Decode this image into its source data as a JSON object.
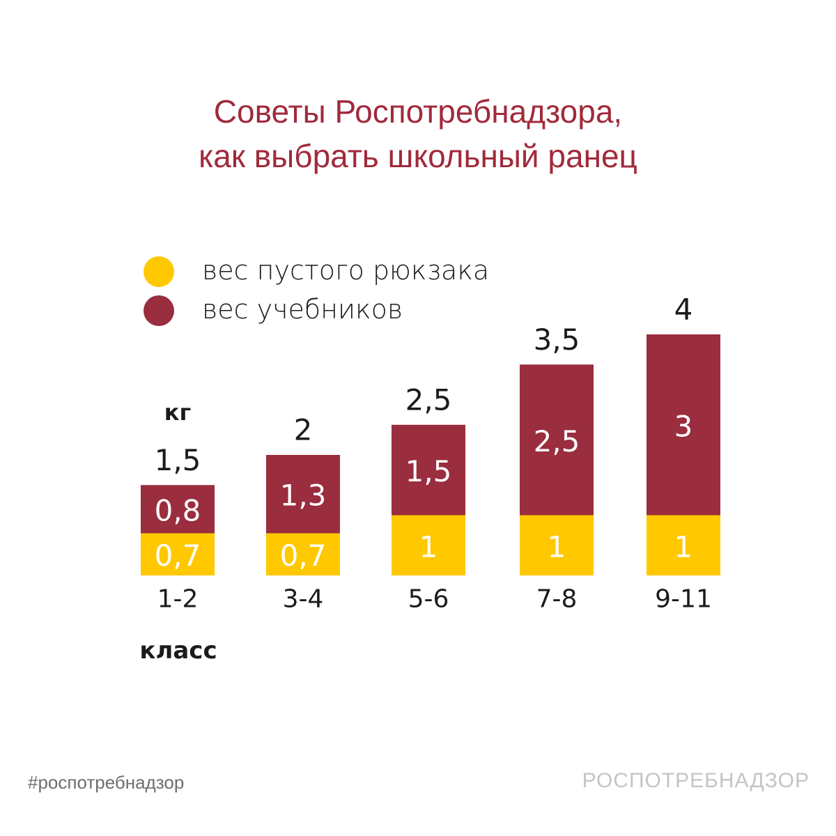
{
  "title_line1": "Советы Роспотребнадзора,",
  "title_line2": "как выбрать школьный ранец",
  "hashtag": "#роспотребнадзор",
  "brand": "РОСПОТРЕБНАДЗОР",
  "colors": {
    "empty_bag": "#ffc800",
    "textbooks": "#9a2d3e",
    "title": "#a12a3b"
  },
  "chart_data": {
    "type": "bar",
    "stacked": true,
    "categories": [
      "1-2",
      "3-4",
      "5-6",
      "7-8",
      "9-11"
    ],
    "series": [
      {
        "name": "вес пустого рюкзака",
        "values": [
          0.7,
          0.7,
          1,
          1,
          1
        ]
      },
      {
        "name": "вес учебников",
        "values": [
          0.8,
          1.3,
          1.5,
          2.5,
          3
        ]
      }
    ],
    "totals": [
      1.5,
      2,
      2.5,
      3.5,
      4
    ],
    "ylabel": "кг",
    "xlabel": "класс",
    "ylim": [
      0,
      4
    ],
    "legend_position": "top-left",
    "grid": false
  }
}
